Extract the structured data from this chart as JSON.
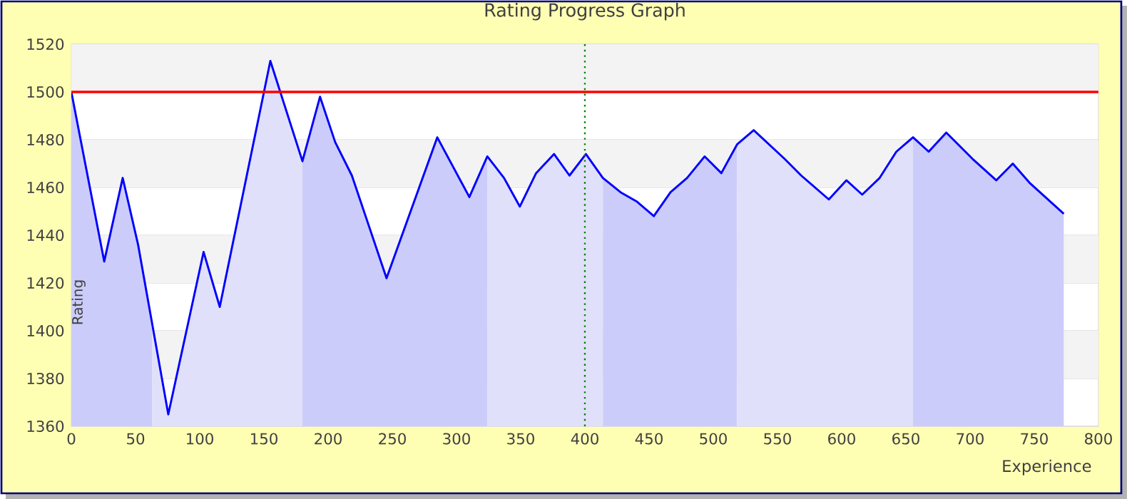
{
  "chart_data": {
    "type": "area",
    "title": "Rating Progress Graph",
    "xlabel": "Experience",
    "ylabel": "Rating",
    "xlim": [
      0,
      800
    ],
    "ylim": [
      1360,
      1520
    ],
    "xticks": [
      0,
      50,
      100,
      150,
      200,
      250,
      300,
      350,
      400,
      450,
      500,
      550,
      600,
      650,
      700,
      750,
      800
    ],
    "yticks": [
      1360,
      1380,
      1400,
      1420,
      1440,
      1460,
      1480,
      1500,
      1520
    ],
    "grid": "y",
    "marker": "none",
    "series": [
      {
        "color": "#ccccfa",
        "x": [
          0,
          25.6,
          40,
          52,
          63
        ],
        "values": [
          1500,
          1429,
          1464,
          1436,
          1400
        ]
      },
      {
        "color": "#e0e0fa",
        "x": [
          63,
          75.5,
          103,
          115.6,
          155,
          180
        ],
        "values": [
          1400,
          1365,
          1433,
          1410,
          1513,
          1471
        ]
      },
      {
        "color": "#ccccfa",
        "x": [
          180,
          193.7,
          205.5,
          218.5,
          245.5,
          285,
          310,
          324
        ],
        "values": [
          1471,
          1498,
          1479,
          1465,
          1422,
          1481,
          1456,
          1473
        ]
      },
      {
        "color": "#e0e0fa",
        "x": [
          324,
          337,
          349.3,
          362,
          376,
          388,
          400.8,
          414
        ],
        "values": [
          1473,
          1464,
          1452,
          1466,
          1474,
          1465,
          1474,
          1464
        ]
      },
      {
        "color": "#ccccfa",
        "x": [
          414,
          427.8,
          440.7,
          453.7,
          466.7,
          479.6,
          493.3,
          506.3,
          518.5
        ],
        "values": [
          1464,
          1458,
          1454,
          1448,
          1458,
          1464,
          1473,
          1466,
          1478
        ]
      },
      {
        "color": "#e0e0fa",
        "x": [
          518.5,
          531.5,
          555.5,
          568.5,
          590,
          603.7,
          616,
          629.6,
          642.6,
          655.6
        ],
        "values": [
          1478,
          1484,
          1472,
          1465,
          1455,
          1463,
          1457,
          1464,
          1475,
          1481
        ]
      },
      {
        "color": "#ccccfa",
        "x": [
          655.6,
          667.8,
          681.5,
          701.9,
          720.4,
          733.3,
          746.3,
          773
        ],
        "values": [
          1481,
          1475,
          1483,
          1472,
          1463,
          1470,
          1462,
          1449
        ]
      },
      {
        "type": "line",
        "color": "#0000ff",
        "line_style": "solid",
        "x": [
          0,
          25.6,
          40,
          52,
          75.5,
          103,
          115.6,
          155,
          180,
          193.7,
          205.5,
          218.5,
          245.5,
          285,
          310,
          324,
          337,
          349.3,
          362,
          376,
          388,
          400.8,
          414,
          427.8,
          440.7,
          453.7,
          466.7,
          479.6,
          493.3,
          506.3,
          518.5,
          531.5,
          555.5,
          568.5,
          590,
          603.7,
          616,
          629.6,
          642.6,
          655.6,
          667.8,
          681.5,
          701.9,
          720.4,
          733.3,
          746.3,
          773
        ],
        "values": [
          1500,
          1429,
          1464,
          1436,
          1365,
          1433,
          1410,
          1513,
          1471,
          1498,
          1479,
          1465,
          1422,
          1481,
          1456,
          1473,
          1464,
          1452,
          1466,
          1474,
          1465,
          1474,
          1464,
          1458,
          1454,
          1448,
          1458,
          1464,
          1473,
          1466,
          1478,
          1484,
          1472,
          1465,
          1455,
          1463,
          1457,
          1464,
          1475,
          1481,
          1475,
          1483,
          1472,
          1463,
          1470,
          1462,
          1449
        ]
      }
    ],
    "ref_lines": [
      {
        "axis": "y",
        "value": 1500,
        "color": "#ff0000",
        "line_style": "solid"
      },
      {
        "axis": "x",
        "value": 400,
        "color": "#008000",
        "line_style": "dotted"
      }
    ]
  }
}
